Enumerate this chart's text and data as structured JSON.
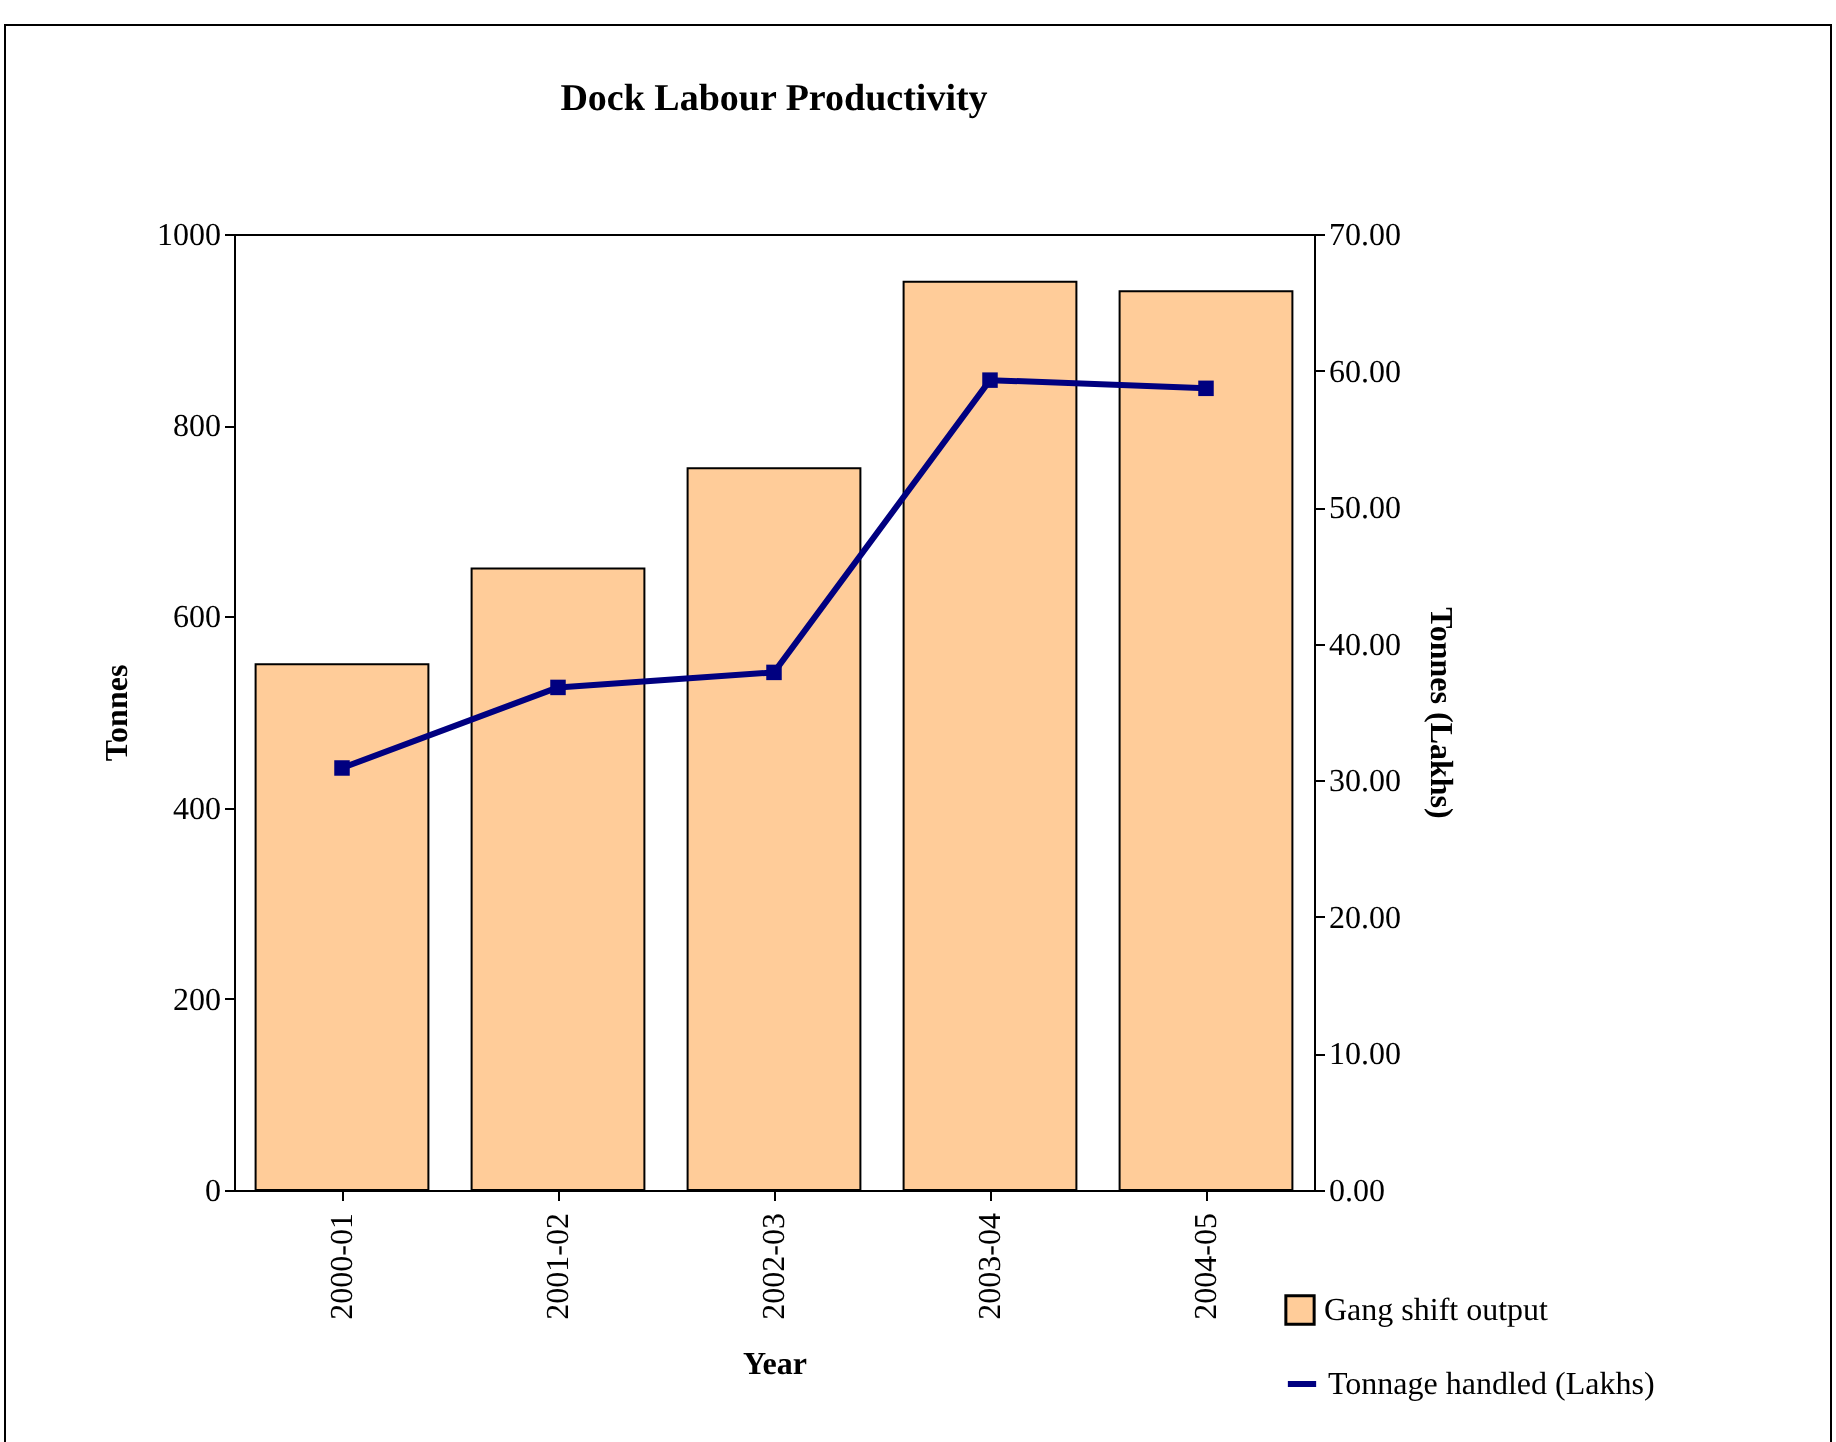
{
  "chart_data": {
    "type": "bar",
    "title": "Dock Labour Productivity",
    "xlabel": "Year",
    "ylabel": "Tonnes",
    "y2label": "Tonnes (Lakhs)",
    "categories": [
      "2000-01",
      "2001-02",
      "2002-03",
      "2003-04",
      "2004-05"
    ],
    "series": [
      {
        "name": "Gang shift output",
        "color": "#ffcc99",
        "values": [
          550,
          650,
          755,
          950,
          940
        ]
      },
      {
        "name": "Tonnage handled (Lakhs)",
        "type": "line",
        "axis": "y2",
        "marker": "square",
        "color": "#000080",
        "values": [
          30.9,
          36.8,
          37.9,
          59.3,
          58.7
        ]
      }
    ],
    "ylim": [
      0,
      1000
    ],
    "yticks": [
      0,
      200,
      400,
      600,
      800,
      1000
    ],
    "y2lim": [
      0,
      70
    ],
    "y2ticks": [
      {
        "value": 0,
        "label": "0.00"
      },
      {
        "value": 10,
        "label": "10.00"
      },
      {
        "value": 20,
        "label": "20.00"
      },
      {
        "value": 30,
        "label": "30.00"
      },
      {
        "value": 40,
        "label": "40.00"
      },
      {
        "value": 50,
        "label": "50.00"
      },
      {
        "value": 60,
        "label": "60.00"
      },
      {
        "value": 70,
        "label": "70.00"
      }
    ],
    "legend": "bottom right",
    "grid": false
  }
}
